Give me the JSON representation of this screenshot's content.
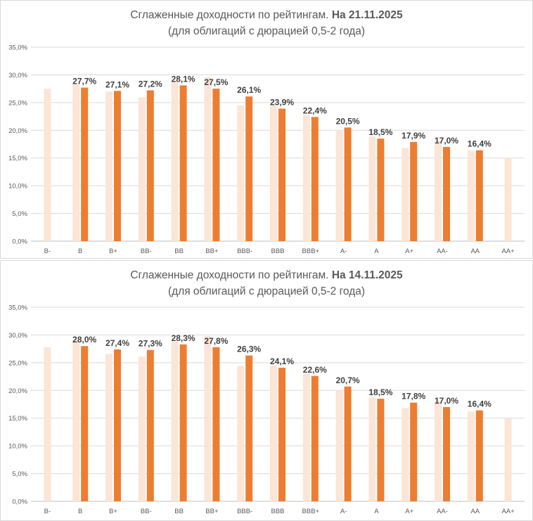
{
  "chart_data": [
    {
      "type": "bar",
      "title_prefix": "Сглаженные доходности по рейтингам. ",
      "title_date": "На 21.11.2025",
      "subtitle": "(для облигаций с дюрацией 0,5-2 года)",
      "categories": [
        "B-",
        "B",
        "B+",
        "BB-",
        "BB",
        "BB+",
        "BBB-",
        "BBB",
        "BBB+",
        "A-",
        "A",
        "A+",
        "AA-",
        "AA",
        "AA+"
      ],
      "series": [
        {
          "name": "previous",
          "color": "#fbe5d6",
          "values": [
            27.5,
            28.3,
            27.0,
            25.9,
            28.9,
            29.6,
            24.5,
            24.5,
            22.7,
            20.0,
            18.9,
            16.8,
            18.1,
            16.3,
            15.0
          ]
        },
        {
          "name": "current",
          "color": "#ed7d31",
          "values": [
            null,
            27.7,
            27.1,
            27.2,
            28.1,
            27.5,
            26.1,
            23.9,
            22.4,
            20.5,
            18.5,
            17.9,
            17.0,
            16.4,
            null
          ]
        }
      ],
      "data_labels": [
        null,
        "27,7%",
        "27,1%",
        "27,2%",
        "28,1%",
        "27,5%",
        "26,1%",
        "23,9%",
        "22,4%",
        "20,5%",
        "18,5%",
        "17,9%",
        "17,0%",
        "16,4%",
        null
      ],
      "yticks": [
        "0,0%",
        "5,0%",
        "10,0%",
        "15,0%",
        "20,0%",
        "25,0%",
        "30,0%",
        "35,0%"
      ],
      "ylim": [
        0,
        35
      ],
      "grid": true
    },
    {
      "type": "bar",
      "title_prefix": "Сглаженные доходности по рейтингам. ",
      "title_date": "На 14.11.2025",
      "subtitle": "(для облигаций с дюрацией 0,5-2 года)",
      "categories": [
        "B-",
        "B",
        "B+",
        "BB-",
        "BB",
        "BB+",
        "BBB-",
        "BBB",
        "BBB+",
        "A-",
        "A",
        "A+",
        "AA-",
        "AA",
        "AA+"
      ],
      "series": [
        {
          "name": "previous",
          "color": "#fbe5d6",
          "values": [
            27.8,
            29.0,
            26.6,
            26.1,
            28.8,
            29.8,
            24.4,
            24.5,
            23.1,
            20.0,
            18.7,
            16.8,
            18.1,
            16.2,
            14.9
          ]
        },
        {
          "name": "current",
          "color": "#ed7d31",
          "values": [
            null,
            28.0,
            27.4,
            27.3,
            28.3,
            27.8,
            26.3,
            24.1,
            22.6,
            20.7,
            18.5,
            17.8,
            17.0,
            16.4,
            null
          ]
        }
      ],
      "data_labels": [
        null,
        "28,0%",
        "27,4%",
        "27,3%",
        "28,3%",
        "27,8%",
        "26,3%",
        "24,1%",
        "22,6%",
        "20,7%",
        "18,5%",
        "17,8%",
        "17,0%",
        "16,4%",
        null
      ],
      "yticks": [
        "0,0%",
        "5,0%",
        "10,0%",
        "15,0%",
        "20,0%",
        "25,0%",
        "30,0%",
        "35,0%"
      ],
      "ylim": [
        0,
        35
      ],
      "grid": true
    }
  ]
}
